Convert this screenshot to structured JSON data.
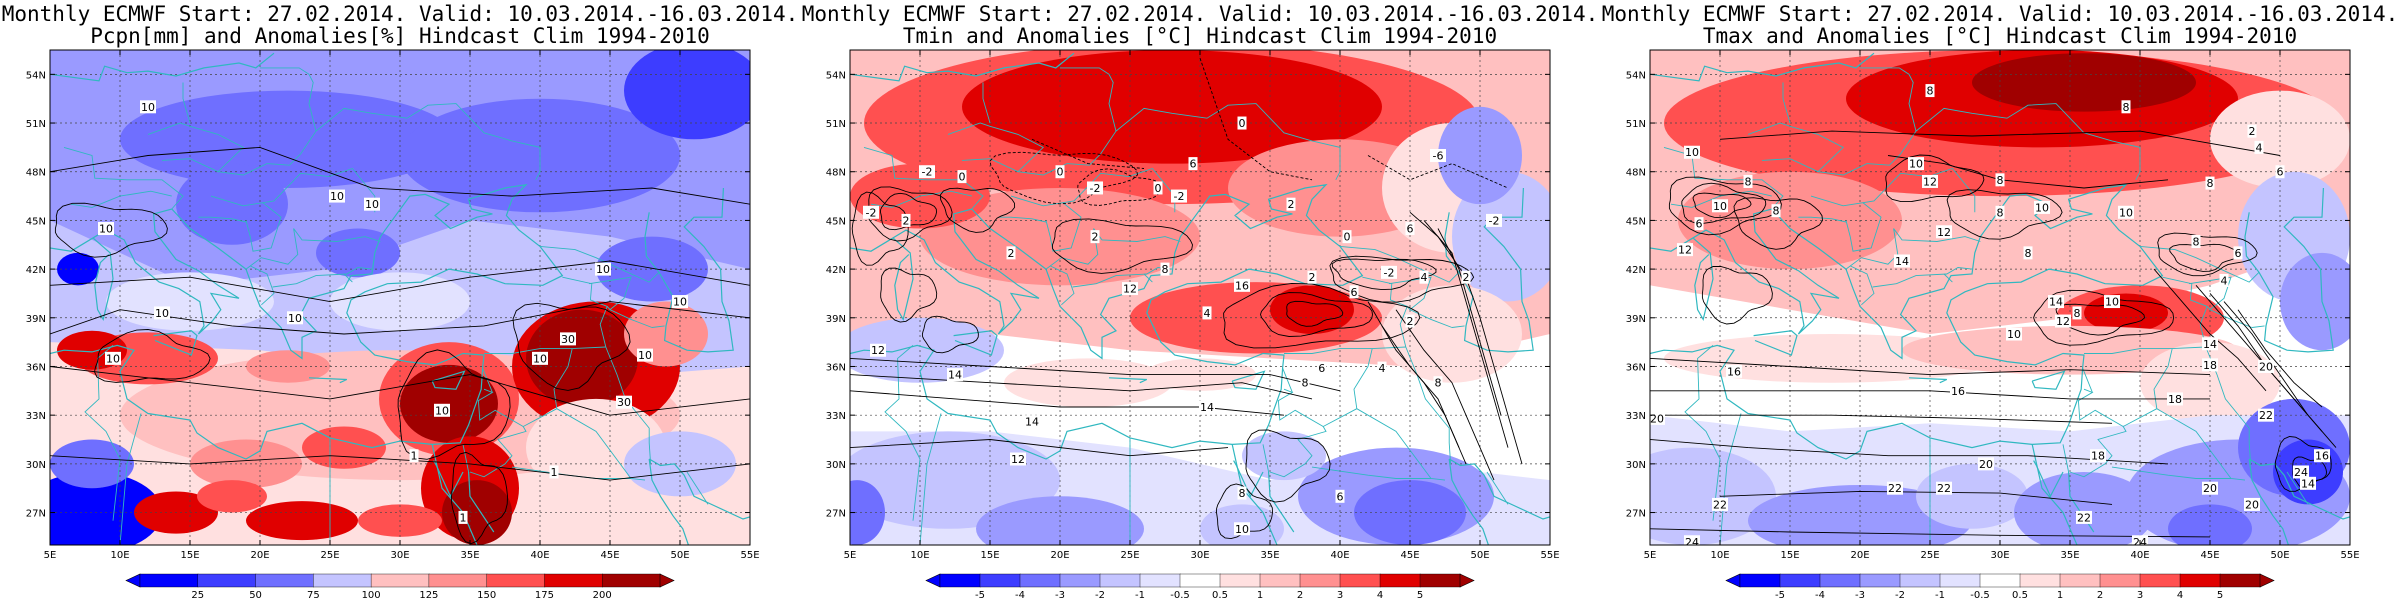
{
  "panels": [
    {
      "title_line1": "Monthly ECMWF Start: 27.02.2014. Valid: 10.03.2014.-16.03.2014.",
      "title_line2": "Pcpn[mm] and Anomalies[%] Hindcast Clim 1994-2010",
      "lat_labels": [
        "54N",
        "51N",
        "48N",
        "45N",
        "42N",
        "39N",
        "36N",
        "33N",
        "30N",
        "27N"
      ],
      "lon_labels": [
        "5E",
        "10E",
        "15E",
        "20E",
        "25E",
        "30E",
        "35E",
        "40E",
        "45E",
        "50E",
        "55E"
      ],
      "colorbar_labels": [
        "25",
        "50",
        "75",
        "100",
        "125",
        "150",
        "175",
        "200"
      ],
      "contour_labels": [
        {
          "text": "10",
          "lon": 12,
          "lat": 52
        },
        {
          "text": "10",
          "lon": 9,
          "lat": 44.5
        },
        {
          "text": "10",
          "lon": 13,
          "lat": 39.3
        },
        {
          "text": "10",
          "lon": 9.5,
          "lat": 36.5
        },
        {
          "text": "10",
          "lon": 22.5,
          "lat": 39
        },
        {
          "text": "10",
          "lon": 25.5,
          "lat": 46.5
        },
        {
          "text": "10",
          "lon": 33,
          "lat": 33.3
        },
        {
          "text": "10",
          "lon": 40,
          "lat": 36.5
        },
        {
          "text": "30",
          "lon": 42,
          "lat": 37.7
        },
        {
          "text": "30",
          "lon": 46,
          "lat": 33.8
        },
        {
          "text": "10",
          "lon": 47.5,
          "lat": 36.7
        },
        {
          "text": "10",
          "lon": 44.5,
          "lat": 42
        },
        {
          "text": "10",
          "lon": 50,
          "lat": 40
        },
        {
          "text": "10",
          "lon": 28,
          "lat": 46
        },
        {
          "text": "1",
          "lon": 31,
          "lat": 30.5
        },
        {
          "text": "1",
          "lon": 41,
          "lat": 29.5
        },
        {
          "text": "1",
          "lon": 34.5,
          "lat": 26.7
        }
      ]
    },
    {
      "title_line1": "Monthly ECMWF Start: 27.02.2014. Valid: 10.03.2014.-16.03.2014.",
      "title_line2": "Tmin and Anomalies [°C] Hindcast Clim 1994-2010",
      "lat_labels": [
        "54N",
        "51N",
        "48N",
        "45N",
        "42N",
        "39N",
        "36N",
        "33N",
        "30N",
        "27N"
      ],
      "lon_labels": [
        "5E",
        "10E",
        "15E",
        "20E",
        "25E",
        "30E",
        "35E",
        "40E",
        "45E",
        "50E",
        "55E"
      ],
      "colorbar_labels": [
        "-5",
        "-4",
        "-3",
        "-2",
        "-1",
        "-0.5",
        "0.5",
        "1",
        "2",
        "3",
        "4",
        "5"
      ],
      "contour_labels": [
        {
          "text": "0",
          "lon": 33,
          "lat": 51
        },
        {
          "text": "-2",
          "lon": 10.5,
          "lat": 48
        },
        {
          "text": "0",
          "lon": 13,
          "lat": 47.7
        },
        {
          "text": "0",
          "lon": 20,
          "lat": 48
        },
        {
          "text": "-2",
          "lon": 22.5,
          "lat": 47
        },
        {
          "text": "-2",
          "lon": 6.5,
          "lat": 45.5
        },
        {
          "text": "2",
          "lon": 9,
          "lat": 45
        },
        {
          "text": "2",
          "lon": 22.5,
          "lat": 44
        },
        {
          "text": "2",
          "lon": 16.5,
          "lat": 43
        },
        {
          "text": "0",
          "lon": 27,
          "lat": 47
        },
        {
          "text": "-2",
          "lon": 28.5,
          "lat": 46.5
        },
        {
          "text": "6",
          "lon": 29.5,
          "lat": 48.5
        },
        {
          "text": "-6",
          "lon": 47,
          "lat": 49
        },
        {
          "text": "-2",
          "lon": 51,
          "lat": 45
        },
        {
          "text": "2",
          "lon": 36.5,
          "lat": 46
        },
        {
          "text": "6",
          "lon": 45,
          "lat": 44.5
        },
        {
          "text": "0",
          "lon": 40.5,
          "lat": 44
        },
        {
          "text": "4",
          "lon": 46,
          "lat": 41.5
        },
        {
          "text": "2",
          "lon": 38,
          "lat": 41.5
        },
        {
          "text": "6",
          "lon": 41,
          "lat": 40.6
        },
        {
          "text": "-2",
          "lon": 43.5,
          "lat": 41.8
        },
        {
          "text": "12",
          "lon": 7,
          "lat": 37
        },
        {
          "text": "14",
          "lon": 12.5,
          "lat": 35.5
        },
        {
          "text": "14",
          "lon": 30.5,
          "lat": 33.5
        },
        {
          "text": "14",
          "lon": 18,
          "lat": 32.6
        },
        {
          "text": "12",
          "lon": 17,
          "lat": 30.3
        },
        {
          "text": "8",
          "lon": 37.5,
          "lat": 35
        },
        {
          "text": "6",
          "lon": 38.7,
          "lat": 35.9
        },
        {
          "text": "4",
          "lon": 43,
          "lat": 35.9
        },
        {
          "text": "2",
          "lon": 45,
          "lat": 38.8
        },
        {
          "text": "10",
          "lon": 33,
          "lat": 26
        },
        {
          "text": "8",
          "lon": 33,
          "lat": 28.2
        },
        {
          "text": "6",
          "lon": 40,
          "lat": 28
        },
        {
          "text": "8",
          "lon": 47,
          "lat": 35
        },
        {
          "text": "2",
          "lon": 49,
          "lat": 41.5
        },
        {
          "text": "16",
          "lon": 33,
          "lat": 41
        },
        {
          "text": "12",
          "lon": 25,
          "lat": 40.8
        },
        {
          "text": "4",
          "lon": 30.5,
          "lat": 39.3
        },
        {
          "text": "8",
          "lon": 27.5,
          "lat": 42
        }
      ]
    },
    {
      "title_line1": "Monthly ECMWF Start: 27.02.2014. Valid: 10.03.2014.-16.03.2014.",
      "title_line2": "Tmax and Anomalies [°C] Hindcast Clim 1994-2010",
      "lat_labels": [
        "54N",
        "51N",
        "48N",
        "45N",
        "42N",
        "39N",
        "36N",
        "33N",
        "30N",
        "27N"
      ],
      "lon_labels": [
        "5E",
        "10E",
        "15E",
        "20E",
        "25E",
        "30E",
        "35E",
        "40E",
        "45E",
        "50E",
        "55E"
      ],
      "colorbar_labels": [
        "-5",
        "-4",
        "-3",
        "-2",
        "-1",
        "-0.5",
        "0.5",
        "1",
        "2",
        "3",
        "4",
        "5"
      ],
      "contour_labels": [
        {
          "text": "8",
          "lon": 25,
          "lat": 53
        },
        {
          "text": "8",
          "lon": 39,
          "lat": 52
        },
        {
          "text": "2",
          "lon": 48,
          "lat": 50.5
        },
        {
          "text": "4",
          "lon": 48.5,
          "lat": 49.5
        },
        {
          "text": "6",
          "lon": 50,
          "lat": 48
        },
        {
          "text": "8",
          "lon": 45,
          "lat": 47.3
        },
        {
          "text": "10",
          "lon": 8,
          "lat": 49.2
        },
        {
          "text": "8",
          "lon": 12,
          "lat": 47.4
        },
        {
          "text": "10",
          "lon": 10,
          "lat": 45.9
        },
        {
          "text": "8",
          "lon": 14,
          "lat": 45.6
        },
        {
          "text": "6",
          "lon": 8.5,
          "lat": 44.8
        },
        {
          "text": "12",
          "lon": 7.5,
          "lat": 43.2
        },
        {
          "text": "10",
          "lon": 24,
          "lat": 48.5
        },
        {
          "text": "12",
          "lon": 25,
          "lat": 47.4
        },
        {
          "text": "8",
          "lon": 30,
          "lat": 47.5
        },
        {
          "text": "8",
          "lon": 30,
          "lat": 45.5
        },
        {
          "text": "10",
          "lon": 33,
          "lat": 45.8
        },
        {
          "text": "10",
          "lon": 39,
          "lat": 45.5
        },
        {
          "text": "12",
          "lon": 26,
          "lat": 44.3
        },
        {
          "text": "14",
          "lon": 23,
          "lat": 42.5
        },
        {
          "text": "8",
          "lon": 32,
          "lat": 43
        },
        {
          "text": "8",
          "lon": 44,
          "lat": 43.7
        },
        {
          "text": "6",
          "lon": 47,
          "lat": 43
        },
        {
          "text": "4",
          "lon": 46,
          "lat": 41.3
        },
        {
          "text": "10",
          "lon": 38,
          "lat": 40
        },
        {
          "text": "8",
          "lon": 35.5,
          "lat": 39.3
        },
        {
          "text": "12",
          "lon": 34.5,
          "lat": 38.8
        },
        {
          "text": "10",
          "lon": 31,
          "lat": 38
        },
        {
          "text": "14",
          "lon": 45,
          "lat": 37.4
        },
        {
          "text": "16",
          "lon": 11,
          "lat": 35.7
        },
        {
          "text": "16",
          "lon": 27,
          "lat": 34.5
        },
        {
          "text": "18",
          "lon": 45,
          "lat": 36.1
        },
        {
          "text": "18",
          "lon": 42.5,
          "lat": 34
        },
        {
          "text": "20",
          "lon": 49,
          "lat": 36
        },
        {
          "text": "20",
          "lon": 5.5,
          "lat": 32.8
        },
        {
          "text": "22",
          "lon": 49,
          "lat": 33
        },
        {
          "text": "24",
          "lon": 51.5,
          "lat": 29.5
        },
        {
          "text": "16",
          "lon": 53,
          "lat": 30.5
        },
        {
          "text": "14",
          "lon": 52,
          "lat": 28.8
        },
        {
          "text": "22",
          "lon": 26,
          "lat": 28.5
        },
        {
          "text": "22",
          "lon": 22.5,
          "lat": 28.5
        },
        {
          "text": "20",
          "lon": 29,
          "lat": 30
        },
        {
          "text": "18",
          "lon": 37,
          "lat": 30.5
        },
        {
          "text": "22",
          "lon": 36,
          "lat": 26.7
        },
        {
          "text": "20",
          "lon": 45,
          "lat": 28.5
        },
        {
          "text": "20",
          "lon": 48,
          "lat": 27.5
        },
        {
          "text": "22",
          "lon": 10,
          "lat": 27.5
        },
        {
          "text": "24",
          "lon": 40,
          "lat": 25.2
        },
        {
          "text": "24",
          "lon": 8,
          "lat": 25.2
        },
        {
          "text": "14",
          "lon": 34,
          "lat": 40
        }
      ]
    }
  ],
  "colors": {
    "coast": "#30b8c0",
    "neg_scale": [
      "#0000ff",
      "#3d3dff",
      "#6f6fff",
      "#9a9aff",
      "#c4c4ff",
      "#e2e2ff"
    ],
    "pos_scale": [
      "#ffe0e0",
      "#ffc0c0",
      "#ff9090",
      "#ff5050",
      "#e00000",
      "#a00000"
    ]
  }
}
